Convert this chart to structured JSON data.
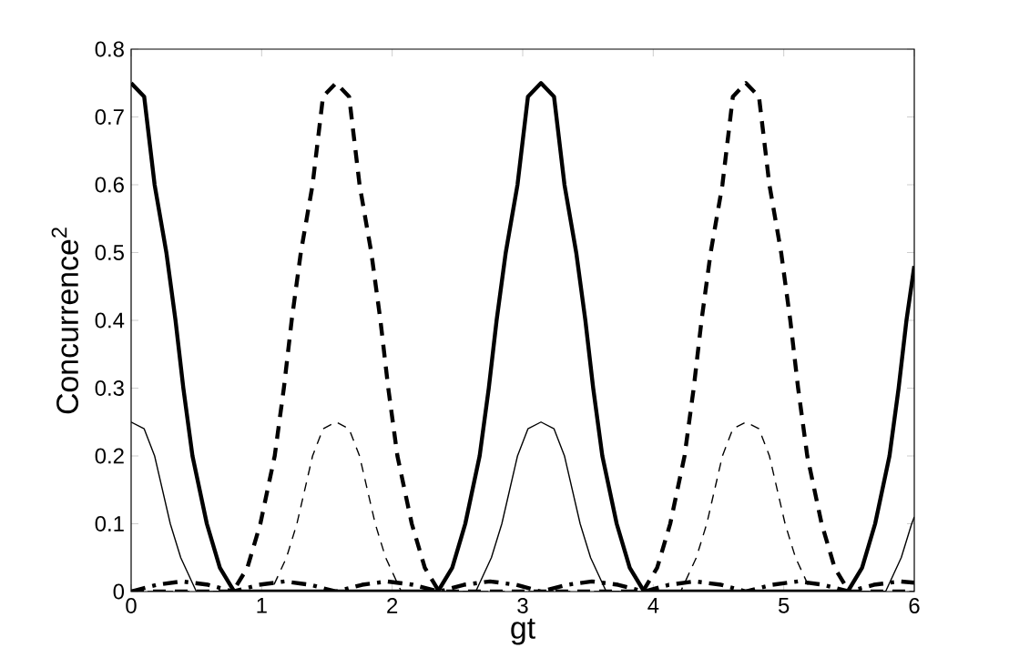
{
  "chart_data": {
    "type": "line",
    "xlabel": "gt",
    "ylabel": "Concurrence$^{2}$",
    "xlim": [
      0,
      6
    ],
    "ylim": [
      0,
      0.8
    ],
    "xticks": [
      0,
      1,
      2,
      3,
      4,
      5,
      6
    ],
    "yticks": [
      0,
      0.1,
      0.2,
      0.3,
      0.4,
      0.5,
      0.6,
      0.7,
      0.8
    ],
    "grid": false,
    "series": [
      {
        "color": "#000000",
        "line_style": "solid",
        "x": [
          0,
          0.1,
          0.18,
          0.27,
          0.34,
          0.4,
          0.47,
          0.58,
          0.68,
          0.79,
          2.35,
          2.46,
          2.56,
          2.67,
          2.74,
          2.8,
          2.87,
          2.96,
          3.04,
          3.14,
          3.24,
          3.32,
          3.41,
          3.48,
          3.54,
          3.61,
          3.72,
          3.82,
          3.93,
          5.49,
          5.6,
          5.7,
          5.81,
          5.88,
          5.94,
          6
        ],
        "values": [
          0.75,
          0.73,
          0.6,
          0.5,
          0.4,
          0.3,
          0.2,
          0.1,
          0.035,
          0,
          0,
          0.035,
          0.1,
          0.2,
          0.3,
          0.4,
          0.5,
          0.6,
          0.73,
          0.75,
          0.73,
          0.6,
          0.5,
          0.4,
          0.3,
          0.2,
          0.1,
          0.035,
          0,
          0,
          0.035,
          0.1,
          0.2,
          0.3,
          0.4,
          0.48
        ]
      },
      {
        "color": "#000000",
        "line_style": "dashed",
        "x": [
          0,
          0.78,
          0.89,
          0.99,
          1.1,
          1.17,
          1.23,
          1.3,
          1.39,
          1.47,
          1.57,
          1.67,
          1.75,
          1.84,
          1.91,
          1.97,
          2.04,
          2.15,
          2.25,
          2.36,
          3.92,
          4.03,
          4.13,
          4.24,
          4.31,
          4.37,
          4.44,
          4.53,
          4.61,
          4.71,
          4.81,
          4.89,
          4.98,
          5.05,
          5.11,
          5.18,
          5.29,
          5.39,
          5.5,
          6
        ],
        "values": [
          0,
          0,
          0.035,
          0.1,
          0.2,
          0.3,
          0.4,
          0.5,
          0.6,
          0.73,
          0.75,
          0.73,
          0.6,
          0.5,
          0.4,
          0.3,
          0.2,
          0.1,
          0.035,
          0,
          0,
          0.035,
          0.1,
          0.2,
          0.3,
          0.4,
          0.5,
          0.6,
          0.73,
          0.75,
          0.73,
          0.6,
          0.5,
          0.4,
          0.3,
          0.2,
          0.1,
          0.035,
          0,
          0
        ]
      },
      {
        "color": "#000000",
        "line_style": "solid",
        "x": [
          0,
          0.1,
          0.18,
          0.24,
          0.3,
          0.38,
          0.5,
          2.64,
          2.76,
          2.84,
          2.9,
          2.96,
          3.04,
          3.14,
          3.24,
          3.32,
          3.38,
          3.44,
          3.52,
          3.64,
          5.78,
          5.9,
          5.98,
          6
        ],
        "values": [
          0.25,
          0.24,
          0.2,
          0.15,
          0.1,
          0.05,
          0,
          0,
          0.05,
          0.1,
          0.15,
          0.2,
          0.24,
          0.25,
          0.24,
          0.2,
          0.15,
          0.1,
          0.05,
          0,
          0,
          0.05,
          0.1,
          0.11
        ]
      },
      {
        "color": "#000000",
        "line_style": "dashed",
        "x": [
          0,
          1.07,
          1.19,
          1.27,
          1.33,
          1.39,
          1.47,
          1.57,
          1.67,
          1.75,
          1.81,
          1.87,
          1.95,
          2.07,
          4.21,
          4.33,
          4.41,
          4.47,
          4.53,
          4.61,
          4.71,
          4.81,
          4.89,
          4.95,
          5.01,
          5.09,
          5.21,
          6
        ],
        "values": [
          0,
          0,
          0.05,
          0.1,
          0.15,
          0.2,
          0.24,
          0.25,
          0.24,
          0.2,
          0.15,
          0.1,
          0.05,
          0,
          0,
          0.05,
          0.1,
          0.15,
          0.2,
          0.24,
          0.25,
          0.24,
          0.2,
          0.15,
          0.1,
          0.05,
          0,
          0
        ]
      },
      {
        "color": "#000000",
        "line_style": "dashdot",
        "x": [
          0,
          0.2,
          0.39,
          0.59,
          0.78,
          0.98,
          1.18,
          1.37,
          1.57,
          1.77,
          1.96,
          2.16,
          2.36,
          2.55,
          2.75,
          2.95,
          3.14,
          3.34,
          3.53,
          3.73,
          3.93,
          4.12,
          4.32,
          4.52,
          4.71,
          4.91,
          5.11,
          5.3,
          5.5,
          5.69,
          5.89,
          6
        ],
        "values": [
          0,
          0.01,
          0.015,
          0.01,
          0,
          0.01,
          0.015,
          0.01,
          0,
          0.01,
          0.015,
          0.01,
          0,
          0.01,
          0.015,
          0.01,
          0,
          0.01,
          0.015,
          0.01,
          0,
          0.01,
          0.015,
          0.01,
          0,
          0.01,
          0.015,
          0.01,
          0,
          0.01,
          0.015,
          0.013
        ]
      }
    ]
  }
}
